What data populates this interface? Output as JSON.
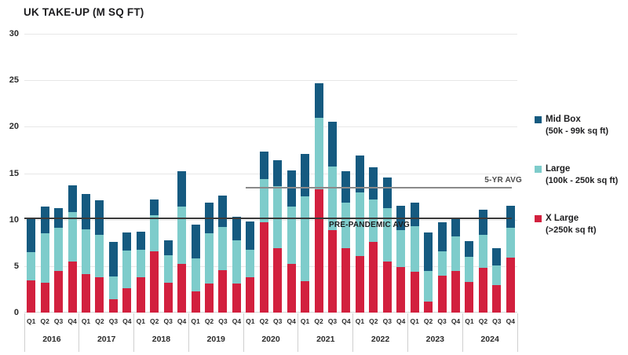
{
  "title": "UK TAKE-UP (M SQ FT)",
  "legend": [
    {
      "label": "Mid Box",
      "sublabel": "(50k - 99k sq ft)",
      "color": "#155a80"
    },
    {
      "label": "Large",
      "sublabel": "(100k - 250k sq ft)",
      "color": "#7ecccb"
    },
    {
      "label": "X Large",
      "sublabel": "(>250k sq ft)",
      "color": "#d2203e"
    }
  ],
  "chart_data": {
    "type": "bar",
    "stacked": true,
    "title": "UK TAKE-UP (M SQ FT)",
    "ylabel": "M SQ FT",
    "ylim": [
      0,
      30
    ],
    "yticks": [
      0,
      5,
      10,
      15,
      20,
      25,
      30
    ],
    "grid": "horizontal",
    "legend_position": "right",
    "years": [
      "2016",
      "2017",
      "2018",
      "2019",
      "2020",
      "2021",
      "2022",
      "2023",
      "2024"
    ],
    "quarters": [
      "Q1",
      "Q2",
      "Q3",
      "Q4"
    ],
    "categories": [
      "2016 Q1",
      "2016 Q2",
      "2016 Q3",
      "2016 Q4",
      "2017 Q1",
      "2017 Q2",
      "2017 Q3",
      "2017 Q4",
      "2018 Q1",
      "2018 Q2",
      "2018 Q3",
      "2018 Q4",
      "2019 Q1",
      "2019 Q2",
      "2019 Q3",
      "2019 Q4",
      "2020 Q1",
      "2020 Q2",
      "2020 Q3",
      "2020 Q4",
      "2021 Q1",
      "2021 Q2",
      "2021 Q3",
      "2021 Q4",
      "2022 Q1",
      "2022 Q2",
      "2022 Q3",
      "2022 Q4",
      "2023 Q1",
      "2023 Q2",
      "2023 Q3",
      "2023 Q4",
      "2024 Q1",
      "2024 Q2",
      "2024 Q3",
      "2024 Q4"
    ],
    "series": [
      {
        "name": "X Large (>250k sq ft)",
        "color": "#d2203e",
        "values": [
          3.5,
          3.2,
          4.5,
          5.5,
          4.1,
          3.8,
          1.4,
          2.6,
          3.8,
          6.6,
          3.2,
          5.2,
          2.3,
          3.1,
          4.6,
          3.1,
          3.8,
          9.7,
          6.9,
          5.2,
          3.4,
          13.3,
          8.9,
          6.9,
          6.1,
          7.6,
          5.5,
          4.9,
          4.4,
          1.2,
          4.0,
          4.5,
          3.3,
          4.8,
          3.0,
          5.9
        ]
      },
      {
        "name": "Large (100k - 250k sq ft)",
        "color": "#7ecccb",
        "values": [
          3.0,
          5.3,
          4.6,
          5.3,
          4.9,
          4.6,
          2.5,
          4.1,
          3.0,
          3.9,
          3.0,
          6.2,
          3.5,
          5.4,
          4.6,
          4.7,
          3.0,
          4.7,
          6.7,
          6.2,
          9.1,
          7.7,
          6.8,
          4.9,
          6.8,
          4.6,
          5.7,
          4.0,
          4.9,
          3.3,
          2.6,
          3.7,
          2.7,
          3.6,
          2.1,
          3.2
        ]
      },
      {
        "name": "Mid Box (50k - 99k sq ft)",
        "color": "#155a80",
        "values": [
          3.7,
          2.9,
          2.1,
          2.9,
          3.8,
          3.7,
          3.7,
          1.9,
          1.9,
          1.7,
          1.6,
          3.8,
          3.7,
          3.3,
          3.4,
          2.5,
          3.0,
          2.9,
          2.8,
          3.9,
          4.6,
          3.7,
          4.8,
          3.4,
          4.0,
          3.4,
          3.3,
          2.6,
          2.5,
          4.1,
          3.1,
          1.9,
          1.7,
          2.7,
          1.8,
          2.4
        ]
      }
    ],
    "reference_lines": [
      {
        "label": "5-YR AVG",
        "value": 13.4,
        "start_index": 16,
        "color": "#8a8a8a",
        "label_color": "#4a4a4a",
        "label_position": "above-right"
      },
      {
        "label": "PRE-PANDEMIC AVG",
        "value": 10.1,
        "start_index": 0,
        "color": "#3a3a3a",
        "label_color": "#1d1d1f",
        "label_position": "below-center"
      }
    ]
  }
}
